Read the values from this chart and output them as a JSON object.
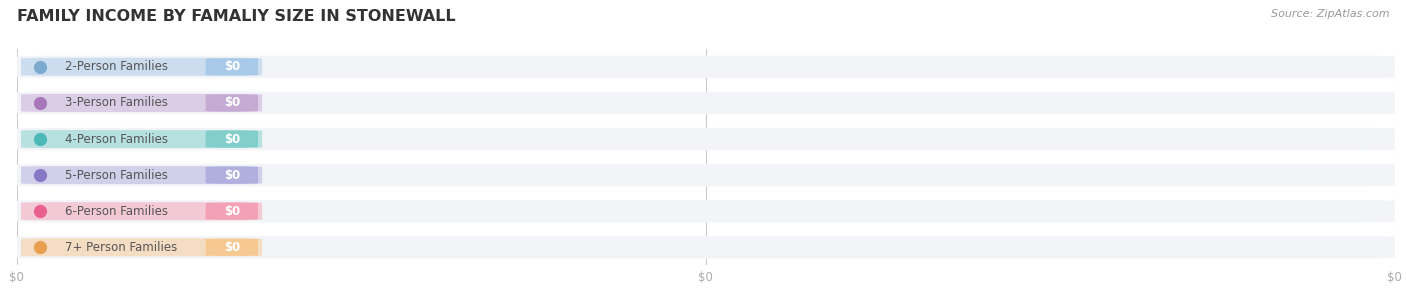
{
  "title": "FAMILY INCOME BY FAMALIY SIZE IN STONEWALL",
  "source": "Source: ZipAtlas.com",
  "categories": [
    "2-Person Families",
    "3-Person Families",
    "4-Person Families",
    "5-Person Families",
    "6-Person Families",
    "7+ Person Families"
  ],
  "values": [
    0,
    0,
    0,
    0,
    0,
    0
  ],
  "bar_colors": [
    "#a8c8e8",
    "#c4a8d4",
    "#7ececa",
    "#b0aede",
    "#f4a0b5",
    "#f8c890"
  ],
  "dot_colors": [
    "#7aaace",
    "#a878b8",
    "#4db8b8",
    "#8878c8",
    "#e86090",
    "#e8a050"
  ],
  "row_bg_color": "#f2f4f7",
  "label_text_color": "#ffffff",
  "category_text_color": "#555555",
  "title_color": "#333333",
  "source_color": "#999999",
  "bg_color": "#ffffff",
  "bar_height": 0.62,
  "x_tick_labels": [
    "$0",
    "$0",
    "$0"
  ],
  "x_tick_positions": [
    0.0,
    0.5,
    1.0
  ],
  "figsize": [
    14.06,
    3.05
  ],
  "dpi": 100
}
